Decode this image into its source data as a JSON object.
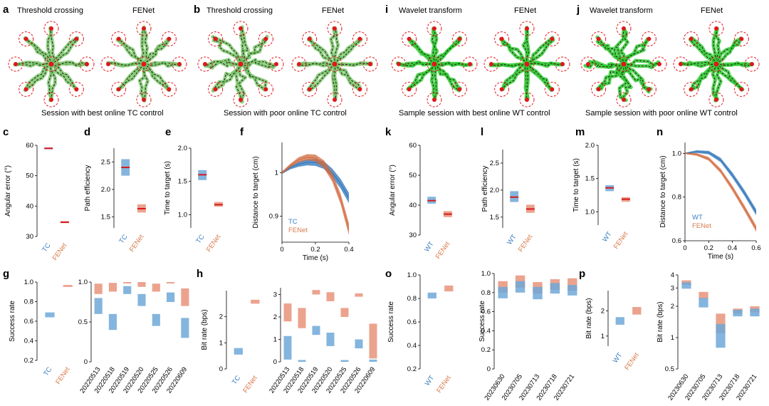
{
  "colors": {
    "tc": "#6fa8d8",
    "tc_dark": "#2b73b8",
    "fe": "#e8937a",
    "fe_dark": "#d26a3f",
    "median": "#d7191c",
    "trace": "#7bc86a",
    "trace_bright": "#33cc33",
    "target": "#e0161b"
  },
  "panels": {
    "a": {
      "letter": "a",
      "left_title": "Threshold crossing",
      "right_title": "FENet",
      "caption": "Session with best online TC control"
    },
    "b": {
      "letter": "b",
      "left_title": "Threshold crossing",
      "right_title": "FENet",
      "caption": "Session with poor online TC control"
    },
    "i": {
      "letter": "i",
      "left_title": "Wavelet transform",
      "right_title": "FENet",
      "caption": "Sample session with best online WT control"
    },
    "j": {
      "letter": "j",
      "left_title": "Wavelet transform",
      "right_title": "FENet",
      "caption": "Sample session with poor online WT control"
    },
    "c": {
      "letter": "c"
    },
    "d": {
      "letter": "d"
    },
    "e": {
      "letter": "e"
    },
    "f": {
      "letter": "f"
    },
    "k": {
      "letter": "k"
    },
    "l": {
      "letter": "l"
    },
    "m": {
      "letter": "m"
    },
    "n": {
      "letter": "n"
    },
    "g": {
      "letter": "g"
    },
    "h": {
      "letter": "h"
    },
    "o": {
      "letter": "o"
    },
    "p": {
      "letter": "p"
    }
  },
  "chart_data": [
    {
      "id": "c",
      "type": "box",
      "ylabel": "Angular error (°)",
      "ylim": [
        30,
        60
      ],
      "yticks": [
        "30",
        "40",
        "50",
        "60"
      ],
      "categories": [
        "TC",
        "FENet"
      ],
      "boxes": [
        {
          "q1": 58.7,
          "q3": 59.3,
          "median": 59
        },
        {
          "q1": 34.4,
          "q3": 35,
          "median": 34.7
        }
      ]
    },
    {
      "id": "d",
      "type": "box",
      "ylabel": "Path efficiency",
      "ylim": [
        1.3,
        2.75
      ],
      "yticks": [
        "1.5",
        "2.0",
        "2.5"
      ],
      "categories": [
        "TC",
        "FENet"
      ],
      "boxes": [
        {
          "q1": 2.25,
          "q3": 2.55,
          "median": 2.4
        },
        {
          "q1": 1.58,
          "q3": 1.73,
          "median": 1.65
        }
      ]
    },
    {
      "id": "e",
      "type": "box",
      "ylabel": "Time to target (s)",
      "ylim": [
        0.8,
        2.0
      ],
      "yticks": [
        "1.0",
        "1.5",
        "2.0"
      ],
      "categories": [
        "TC",
        "FENet"
      ],
      "boxes": [
        {
          "q1": 1.52,
          "q3": 1.67,
          "median": 1.6
        },
        {
          "q1": 1.12,
          "q3": 1.19,
          "median": 1.15
        }
      ]
    },
    {
      "id": "f",
      "type": "line",
      "xlabel": "Time (s)",
      "ylabel": "Distance to target (cm)",
      "xlim": [
        0,
        0.4
      ],
      "ylim": [
        0.84,
        1.07
      ],
      "xticks": [
        "0",
        "0.2",
        "0.4"
      ],
      "yticks": [
        "0.9",
        "1"
      ],
      "legend": [
        "TC",
        "FENet"
      ],
      "series": [
        {
          "name": "TC",
          "x": [
            0,
            0.05,
            0.1,
            0.15,
            0.2,
            0.25,
            0.3,
            0.35,
            0.4
          ],
          "y": [
            1,
            1.012,
            1.02,
            1.024,
            1.024,
            1.018,
            1.0,
            0.975,
            0.942
          ],
          "band": [
            0.003,
            0.004,
            0.006,
            0.007,
            0.008,
            0.009,
            0.01,
            0.011,
            0.012
          ]
        },
        {
          "name": "FENet",
          "x": [
            0,
            0.05,
            0.1,
            0.15,
            0.2,
            0.25,
            0.3,
            0.35,
            0.4
          ],
          "y": [
            1,
            1.017,
            1.03,
            1.036,
            1.034,
            1.02,
            0.99,
            0.94,
            0.87
          ],
          "band": [
            0.003,
            0.004,
            0.006,
            0.007,
            0.008,
            0.009,
            0.01,
            0.012,
            0.014
          ]
        }
      ]
    },
    {
      "id": "k",
      "type": "box",
      "ylabel": "Angular error (°)",
      "ylim": [
        30,
        60
      ],
      "yticks": [
        "30",
        "40",
        "50",
        "60"
      ],
      "categories": [
        "WT",
        "FENet"
      ],
      "boxes": [
        {
          "q1": 40.5,
          "q3": 42.8,
          "median": 41.5
        },
        {
          "q1": 36,
          "q3": 38,
          "median": 37
        }
      ]
    },
    {
      "id": "l",
      "type": "box",
      "ylabel": "Path efficiency",
      "ylim": [
        1.3,
        2.75
      ],
      "yticks": [
        "1.5",
        "2.0",
        "2.5"
      ],
      "categories": [
        "WT",
        "FENet"
      ],
      "boxes": [
        {
          "q1": 1.78,
          "q3": 1.98,
          "median": 1.87
        },
        {
          "q1": 1.58,
          "q3": 1.73,
          "median": 1.65
        }
      ]
    },
    {
      "id": "m",
      "type": "box",
      "ylabel": "Time to target (s)",
      "ylim": [
        0.8,
        2.0
      ],
      "yticks": [
        "1.0",
        "1.5",
        "2.0"
      ],
      "categories": [
        "WT",
        "FENet"
      ],
      "boxes": [
        {
          "q1": 1.31,
          "q3": 1.4,
          "median": 1.36
        },
        {
          "q1": 1.15,
          "q3": 1.22,
          "median": 1.19
        }
      ]
    },
    {
      "id": "n",
      "type": "line",
      "xlabel": "Time (s)",
      "ylabel": "Distance to target (cm)",
      "xlim": [
        0,
        0.6
      ],
      "ylim": [
        0.6,
        1.05
      ],
      "xticks": [
        "0",
        "0.2",
        "0.4",
        "0.6"
      ],
      "yticks": [
        "0.6",
        "0.8",
        "1.0"
      ],
      "legend": [
        "WT",
        "FENet"
      ],
      "series": [
        {
          "name": "WT",
          "x": [
            0,
            0.1,
            0.2,
            0.3,
            0.4,
            0.5,
            0.6
          ],
          "y": [
            1,
            1.008,
            1.004,
            0.97,
            0.9,
            0.82,
            0.73
          ],
          "band": [
            0.003,
            0.006,
            0.008,
            0.01,
            0.012,
            0.013,
            0.014
          ]
        },
        {
          "name": "FENet",
          "x": [
            0,
            0.1,
            0.2,
            0.3,
            0.4,
            0.5,
            0.6
          ],
          "y": [
            1,
            0.995,
            0.975,
            0.92,
            0.84,
            0.75,
            0.655
          ],
          "band": [
            0.003,
            0.006,
            0.008,
            0.01,
            0.012,
            0.013,
            0.014
          ]
        }
      ]
    },
    {
      "id": "g1",
      "type": "box",
      "ylabel": "Success rate",
      "ylim": [
        0.2,
        1.0
      ],
      "yticks": [
        "0.2",
        "0.4",
        "0.6",
        "0.8",
        "1.0"
      ],
      "categories": [
        "TC",
        "FENet"
      ],
      "boxes": [
        {
          "q1": 0.64,
          "q3": 0.69,
          "median": 0.665
        },
        {
          "q1": 0.95,
          "q3": 0.97,
          "median": 0.96
        }
      ]
    },
    {
      "id": "g2",
      "type": "box",
      "ylim": [
        0,
        1.0
      ],
      "yticks": [
        "0",
        "0.5",
        "1.0"
      ],
      "categories": [
        "20220513",
        "20220518",
        "20220519",
        "20220520",
        "20220525",
        "20220526",
        "20220609"
      ],
      "tc": [
        {
          "q1": 0.6,
          "q3": 0.8,
          "median": 0.7
        },
        {
          "q1": 0.4,
          "q3": 0.6,
          "median": 0.5
        },
        {
          "q1": 0.85,
          "q3": 0.95,
          "median": 0.9
        },
        {
          "q1": 0.7,
          "q3": 0.85,
          "median": 0.78
        },
        {
          "q1": 0.45,
          "q3": 0.6,
          "median": 0.52
        },
        {
          "q1": 0.75,
          "q3": 0.87,
          "median": 0.8
        },
        {
          "q1": 0.3,
          "q3": 0.55,
          "median": 0.42
        }
      ],
      "fe": [
        {
          "q1": 0.85,
          "q3": 0.98,
          "median": 0.92
        },
        {
          "q1": 0.88,
          "q3": 0.99,
          "median": 0.95
        },
        {
          "q1": 0.99,
          "q3": 1.0,
          "median": 1.0
        },
        {
          "q1": 0.94,
          "q3": 1.0,
          "median": 0.97
        },
        {
          "q1": 0.88,
          "q3": 0.98,
          "median": 0.93
        },
        {
          "q1": 0.99,
          "q3": 1.0,
          "median": 1.0
        },
        {
          "q1": 0.7,
          "q3": 0.92,
          "median": 0.8
        }
      ]
    },
    {
      "id": "h1",
      "type": "box",
      "ylabel": "Bit rate (bps)",
      "ylim": [
        0,
        3
      ],
      "yticks": [
        "0",
        "1",
        "2"
      ],
      "categories": [
        "TC",
        "FENet"
      ],
      "boxes": [
        {
          "q1": 0.55,
          "q3": 0.8,
          "median": 0.67
        },
        {
          "q1": 2.5,
          "q3": 2.65,
          "median": 2.57
        }
      ]
    },
    {
      "id": "h2",
      "type": "box",
      "ylim": [
        0,
        3.3
      ],
      "yticks": [
        "0",
        "1",
        "2",
        "3"
      ],
      "categories": [
        "20220513",
        "20220518",
        "20220519",
        "20220520",
        "20220525",
        "20220526",
        "20220609"
      ],
      "tc": [
        {
          "q1": 0.1,
          "q3": 1.15,
          "median": 0.6
        },
        {
          "q1": 0,
          "q3": 0.08,
          "median": 0.03
        },
        {
          "q1": 1.2,
          "q3": 1.6,
          "median": 1.4
        },
        {
          "q1": 0.7,
          "q3": 1.3,
          "median": 1.0
        },
        {
          "q1": 0,
          "q3": 0.08,
          "median": 0.03
        },
        {
          "q1": 0.6,
          "q3": 1.0,
          "median": 0.8
        },
        {
          "q1": 0,
          "q3": 0.1,
          "median": 0.04
        }
      ],
      "fe": [
        {
          "q1": 1.8,
          "q3": 2.6,
          "median": 2.2
        },
        {
          "q1": 1.5,
          "q3": 2.4,
          "median": 2.0
        },
        {
          "q1": 3.0,
          "q3": 3.2,
          "median": 3.1
        },
        {
          "q1": 2.7,
          "q3": 3.1,
          "median": 2.9
        },
        {
          "q1": 2.0,
          "q3": 2.4,
          "median": 2.2
        },
        {
          "q1": 2.9,
          "q3": 3.05,
          "median": 2.97
        },
        {
          "q1": 0.15,
          "q3": 1.7,
          "median": 0.9
        }
      ]
    },
    {
      "id": "o1",
      "type": "box",
      "ylabel": "Success rate",
      "ylim": [
        0.2,
        1.0
      ],
      "yticks": [
        "0.2",
        "0.4",
        "0.6",
        "0.8",
        "1.0"
      ],
      "categories": [
        "WT",
        "FENet"
      ],
      "boxes": [
        {
          "q1": 0.8,
          "q3": 0.85,
          "median": 0.825
        },
        {
          "q1": 0.86,
          "q3": 0.91,
          "median": 0.885
        }
      ]
    },
    {
      "id": "o2",
      "type": "box",
      "ylabel": "Success rate",
      "ylim": [
        0,
        1.0
      ],
      "yticks": [
        "0",
        "0.2",
        "0.4",
        "0.6",
        "0.8",
        "1.0"
      ],
      "categories": [
        "20230630",
        "20230705",
        "20230713",
        "20230718",
        "20230721"
      ],
      "tc": [
        {
          "q1": 0.74,
          "q3": 0.86,
          "median": 0.8
        },
        {
          "q1": 0.8,
          "q3": 0.92,
          "median": 0.86
        },
        {
          "q1": 0.73,
          "q3": 0.86,
          "median": 0.8
        },
        {
          "q1": 0.79,
          "q3": 0.9,
          "median": 0.85
        },
        {
          "q1": 0.77,
          "q3": 0.88,
          "median": 0.82
        }
      ],
      "fe": [
        {
          "q1": 0.8,
          "q3": 0.92,
          "median": 0.86
        },
        {
          "q1": 0.85,
          "q3": 0.98,
          "median": 0.91
        },
        {
          "q1": 0.79,
          "q3": 0.91,
          "median": 0.85
        },
        {
          "q1": 0.83,
          "q3": 0.94,
          "median": 0.88
        },
        {
          "q1": 0.82,
          "q3": 0.95,
          "median": 0.88
        }
      ]
    },
    {
      "id": "p1",
      "type": "box",
      "ylabel": "Bit rate (bps)",
      "ylim": [
        0.6,
        2.8
      ],
      "yticks": [
        "1",
        "2"
      ],
      "categories": [
        "WT",
        "FENet"
      ],
      "boxes": [
        {
          "q1": 1.45,
          "q3": 1.75,
          "median": 1.6
        },
        {
          "q1": 1.85,
          "q3": 2.15,
          "median": 2.0
        }
      ]
    },
    {
      "id": "p2",
      "type": "box",
      "ylabel": "Bit rate (bps)",
      "ylim": [
        0.5,
        4
      ],
      "yticks": [
        "0.5",
        "1",
        "2",
        "3",
        "4"
      ],
      "categories": [
        "20230630",
        "20230705",
        "20230713",
        "20230718",
        "20230721"
      ],
      "tc": [
        {
          "q1": 2.95,
          "q3": 3.4,
          "median": 3.2
        },
        {
          "q1": 1.95,
          "q3": 2.4,
          "median": 2.15
        },
        {
          "q1": 0.8,
          "q3": 1.35,
          "median": 1.0
        },
        {
          "q1": 1.6,
          "q3": 1.85,
          "median": 1.72
        },
        {
          "q1": 1.6,
          "q3": 1.9,
          "median": 1.75
        }
      ],
      "fe": [
        {
          "q1": 3.2,
          "q3": 3.55,
          "median": 3.35
        },
        {
          "q1": 2.35,
          "q3": 2.75,
          "median": 2.55
        },
        {
          "q1": 1.1,
          "q3": 1.7,
          "median": 1.4
        },
        {
          "q1": 1.7,
          "q3": 1.9,
          "median": 1.8
        },
        {
          "q1": 1.75,
          "q3": 2.0,
          "median": 1.85
        }
      ]
    }
  ]
}
